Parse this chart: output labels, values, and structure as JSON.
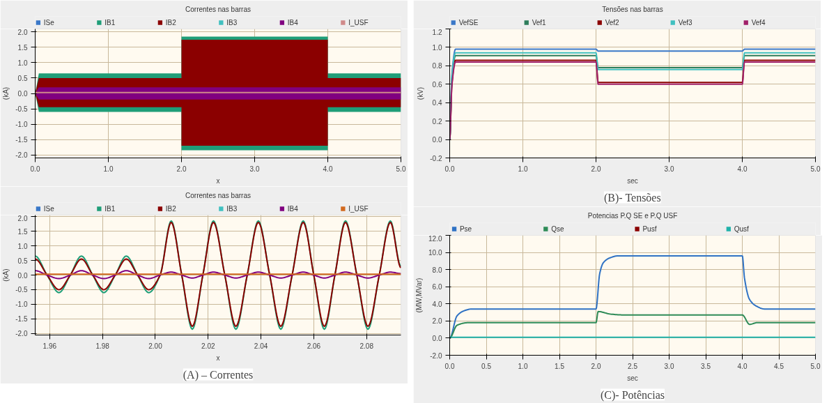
{
  "chart_data": [
    {
      "type": "line",
      "title": "Correntes nas barras",
      "xlabel": "x",
      "ylabel": "(kA)",
      "grid": true,
      "legend": "top",
      "xlim": [
        0,
        5
      ],
      "ylim": [
        -2.1,
        2.1
      ],
      "xticks": [
        {
          "value": 0,
          "label": "0.0"
        },
        {
          "value": 1,
          "label": "1.0"
        },
        {
          "value": 2,
          "label": "2.0"
        },
        {
          "value": 3,
          "label": "3.0"
        },
        {
          "value": 4,
          "label": "4.0"
        },
        {
          "value": 5,
          "label": "5.0"
        }
      ],
      "yticks": [
        {
          "value": -2,
          "label": "-2.0"
        },
        {
          "value": -1.5,
          "label": "-1.5"
        },
        {
          "value": -1,
          "label": "-1.0"
        },
        {
          "value": -0.5,
          "label": "-0.5"
        },
        {
          "value": 0,
          "label": "0.0"
        },
        {
          "value": 0.5,
          "label": "0.5"
        },
        {
          "value": 1,
          "label": "1.0"
        },
        {
          "value": 1.5,
          "label": "1.5"
        },
        {
          "value": 2,
          "label": "2.0"
        }
      ],
      "x": [
        0,
        0.05,
        2.0,
        2.0,
        4.0,
        4.0,
        5.0
      ],
      "series": [
        {
          "name": "ISe",
          "color": "#3a78c8",
          "values": [
            null,
            null,
            null,
            null,
            null,
            null,
            null
          ]
        },
        {
          "name": "IB1",
          "color": "#1f9e78",
          "values": [
            null,
            null,
            null,
            null,
            null,
            null,
            null
          ],
          "lower": [
            0,
            -0.6,
            -0.6,
            -1.85,
            -1.85,
            -0.6,
            -0.6
          ],
          "upper": [
            0,
            0.65,
            0.65,
            1.85,
            1.85,
            0.65,
            0.65
          ]
        },
        {
          "name": "IB2",
          "color": "#8b0000",
          "values": [
            null,
            null,
            null,
            null,
            null,
            null,
            null
          ],
          "lower": [
            0,
            -0.45,
            -0.45,
            -1.7,
            -1.7,
            -0.45,
            -0.45
          ],
          "upper": [
            0,
            0.5,
            0.5,
            1.75,
            1.75,
            0.5,
            0.5
          ]
        },
        {
          "name": "IB3",
          "color": "#40c0c0",
          "values": [
            null,
            null,
            null,
            null,
            null,
            null,
            null
          ]
        },
        {
          "name": "IB4",
          "color": "#800080",
          "values": [
            null,
            null,
            null,
            null,
            null,
            null,
            null
          ],
          "lower": [
            0,
            -0.2,
            -0.2,
            -0.2,
            -0.2,
            -0.2,
            -0.2
          ],
          "upper": [
            0,
            0.2,
            0.2,
            0.2,
            0.2,
            0.2,
            0.2
          ]
        },
        {
          "name": "I_USF",
          "color": "#d08a8a",
          "values": [
            0.03,
            0.03,
            0.03,
            0.03,
            0.03,
            0.03,
            0.03
          ]
        }
      ]
    },
    {
      "type": "line",
      "title": "Correntes nas barras",
      "xlabel": "x",
      "ylabel": "(kA)",
      "grid": true,
      "legend": "top",
      "annotations": [
        "(A) – Correntes"
      ],
      "xlim": [
        1.9545,
        2.093
      ],
      "ylim": [
        -2.05,
        2.05
      ],
      "xticks": [
        1.96,
        1.98,
        {
          "value": 2.0,
          "label": "2.00"
        },
        2.02,
        2.04,
        2.06,
        2.08
      ],
      "yticks": [
        {
          "value": -2,
          "label": "-2.0"
        },
        {
          "value": -1.5,
          "label": "-1.5"
        },
        {
          "value": -1,
          "label": "-1.0"
        },
        {
          "value": -0.5,
          "label": "-0.5"
        },
        {
          "value": 0,
          "label": "0.0"
        },
        {
          "value": 0.5,
          "label": "0.5"
        },
        {
          "value": 1,
          "label": "1.0"
        },
        {
          "value": 1.5,
          "label": "1.5"
        },
        {
          "value": 2,
          "label": "2.0"
        }
      ],
      "x": [
        1.9545,
        1.959,
        1.9635,
        1.9678,
        1.972,
        1.9763,
        1.9805,
        1.9848,
        1.989,
        1.9933,
        1.9975,
        2.0018,
        2.006,
        2.01,
        2.014,
        2.018,
        2.022,
        2.0263,
        2.0305,
        2.0348,
        2.039,
        2.0433,
        2.0475,
        2.0518,
        2.056,
        2.06,
        2.064,
        2.068,
        2.072,
        2.0763,
        2.0805,
        2.0848,
        2.089,
        2.093
      ],
      "series": [
        {
          "name": "ISe",
          "color": "#3a78c8",
          "values": [
            null,
            null,
            null,
            null,
            null,
            null,
            null,
            null,
            null,
            null,
            null,
            null,
            null,
            null,
            null,
            null,
            null,
            null,
            null,
            null,
            null,
            null,
            null,
            null,
            null,
            null,
            null,
            null,
            null,
            null,
            null,
            null,
            null,
            null
          ]
        },
        {
          "name": "IB1",
          "color": "#1f9e78",
          "values": [
            0.65,
            0,
            -0.6,
            0,
            0.65,
            0,
            -0.6,
            0,
            0.65,
            0,
            -0.6,
            0,
            1.85,
            0,
            -1.85,
            0,
            1.85,
            0,
            -1.85,
            0,
            1.85,
            0,
            -1.85,
            0,
            1.85,
            0,
            -1.85,
            0,
            1.85,
            0,
            -1.85,
            0,
            1.85,
            0.3
          ]
        },
        {
          "name": "IB2",
          "color": "#8b0000",
          "values": [
            0.55,
            0,
            -0.5,
            0,
            0.55,
            0,
            -0.5,
            0,
            0.55,
            0,
            -0.5,
            0,
            1.8,
            0,
            -1.75,
            0,
            1.8,
            0,
            -1.75,
            0,
            1.8,
            0,
            -1.75,
            0,
            1.8,
            0,
            -1.75,
            0,
            1.8,
            0,
            -1.75,
            0,
            1.8,
            0.25
          ]
        },
        {
          "name": "IB3",
          "color": "#40c0c0",
          "values": [
            null,
            null,
            null,
            null,
            null,
            null,
            null,
            null,
            null,
            null,
            null,
            null,
            null,
            null,
            null,
            null,
            null,
            null,
            null,
            null,
            null,
            null,
            null,
            null,
            null,
            null,
            null,
            null,
            null,
            null,
            null,
            null,
            null,
            null
          ]
        },
        {
          "name": "IB4",
          "color": "#800080",
          "values": [
            0.15,
            0,
            -0.12,
            0,
            0.15,
            0,
            -0.12,
            0,
            0.15,
            0,
            -0.12,
            0,
            0.1,
            0,
            -0.1,
            0,
            0.1,
            0,
            -0.1,
            0,
            0.1,
            0,
            -0.1,
            0,
            0.1,
            0,
            -0.1,
            0,
            0.1,
            0,
            -0.1,
            0,
            0.1,
            0.05
          ]
        },
        {
          "name": "I_USF",
          "color": "#d2691e",
          "x": [
            1.9545,
            2.093
          ],
          "values": [
            0.03,
            0.03
          ]
        }
      ]
    },
    {
      "type": "line",
      "title": "Tensões nas barras",
      "xlabel": "sec",
      "ylabel": "(kV)",
      "grid": true,
      "legend": "top",
      "annotations": [
        "(B)- Tensões"
      ],
      "xlim": [
        0,
        5
      ],
      "ylim": [
        -0.2,
        1.2
      ],
      "xticks": [
        {
          "value": 0,
          "label": "0.0"
        },
        {
          "value": 1,
          "label": "1.0"
        },
        {
          "value": 2,
          "label": "2.0"
        },
        {
          "value": 3,
          "label": "3.0"
        },
        {
          "value": 4,
          "label": "4.0"
        },
        {
          "value": 5,
          "label": "5.0"
        }
      ],
      "yticks": [
        {
          "value": -0.2,
          "label": "-0.2"
        },
        {
          "value": 0,
          "label": "0.0"
        },
        {
          "value": 0.2,
          "label": "0.2"
        },
        {
          "value": 0.4,
          "label": "0.4"
        },
        {
          "value": 0.6,
          "label": "0.6"
        },
        {
          "value": 0.8,
          "label": "0.8"
        },
        {
          "value": 1.0,
          "label": "1.0"
        },
        {
          "value": 1.2,
          "label": "1.2"
        }
      ],
      "x": [
        0,
        0.03,
        0.08,
        2.0,
        2.03,
        4.0,
        4.03,
        5.0
      ],
      "series": [
        {
          "name": "VefSE",
          "color": "#3a78c8",
          "values": [
            0,
            0.7,
            0.98,
            0.98,
            0.96,
            0.96,
            0.98,
            0.98
          ]
        },
        {
          "name": "Vef1",
          "color": "#2e7d5b",
          "values": [
            0,
            0.65,
            0.91,
            0.91,
            0.78,
            0.78,
            0.91,
            0.91
          ]
        },
        {
          "name": "Vef2",
          "color": "#8b0000",
          "values": [
            0,
            0.6,
            0.86,
            0.86,
            0.62,
            0.62,
            0.86,
            0.86
          ]
        },
        {
          "name": "Vef3",
          "color": "#40c0c0",
          "values": [
            0,
            0.68,
            0.94,
            0.94,
            0.76,
            0.76,
            0.94,
            0.94
          ]
        },
        {
          "name": "Vef4",
          "color": "#a0206a",
          "values": [
            0,
            0.58,
            0.84,
            0.84,
            0.6,
            0.6,
            0.84,
            0.84
          ]
        }
      ]
    },
    {
      "type": "line",
      "title": "Potencias P.Q SE e P.Q USF",
      "xlabel": "sec",
      "ylabel": "(MW,MVar)",
      "grid": true,
      "legend": "top",
      "annotations": [
        "(C)- Potências"
      ],
      "xlim": [
        0,
        5
      ],
      "ylim": [
        -2,
        12
      ],
      "xticks": [
        {
          "value": 0,
          "label": "0.0"
        },
        {
          "value": 0.5,
          "label": "0.5"
        },
        {
          "value": 1,
          "label": "1.0"
        },
        {
          "value": 1.5,
          "label": "1.5"
        },
        {
          "value": 2,
          "label": "2.0"
        },
        {
          "value": 2.5,
          "label": "2.5"
        },
        {
          "value": 3,
          "label": "3.0"
        },
        {
          "value": 3.5,
          "label": "3.5"
        },
        {
          "value": 4,
          "label": "4.0"
        },
        {
          "value": 4.5,
          "label": "4.5"
        },
        {
          "value": 5,
          "label": "5.0"
        }
      ],
      "yticks": [
        {
          "value": -2,
          "label": "-2.0"
        },
        {
          "value": 0,
          "label": "0.0"
        },
        {
          "value": 2,
          "label": "2.0"
        },
        {
          "value": 4,
          "label": "4.0"
        },
        {
          "value": 6,
          "label": "6.0"
        },
        {
          "value": 8,
          "label": "8.0"
        },
        {
          "value": 10,
          "label": "10.0"
        },
        {
          "value": 12,
          "label": "12.0"
        }
      ],
      "series": [
        {
          "name": "Pse",
          "color": "#2f72c4",
          "x": [
            0,
            0.1,
            0.2,
            0.3,
            2.0,
            2.05,
            2.1,
            2.2,
            2.3,
            4.0,
            4.03,
            4.1,
            4.2,
            4.3,
            5.0
          ],
          "values": [
            0,
            2.6,
            3.2,
            3.4,
            3.4,
            7.5,
            8.8,
            9.4,
            9.6,
            9.6,
            7.0,
            4.5,
            3.7,
            3.4,
            3.4
          ]
        },
        {
          "name": "Qse",
          "color": "#2e8b57",
          "x": [
            0,
            0.1,
            0.25,
            2.0,
            2.03,
            2.2,
            2.4,
            4.0,
            4.1,
            4.2,
            5.0
          ],
          "values": [
            0,
            1.5,
            1.8,
            1.8,
            3.1,
            2.8,
            2.7,
            2.7,
            1.6,
            1.8,
            1.8
          ]
        },
        {
          "name": "Pusf",
          "color": "#8b0000",
          "values": [
            null
          ]
        },
        {
          "name": "Qusf",
          "color": "#20b2aa",
          "x": [
            0,
            5
          ],
          "values": [
            0.1,
            0.1
          ]
        }
      ]
    }
  ]
}
